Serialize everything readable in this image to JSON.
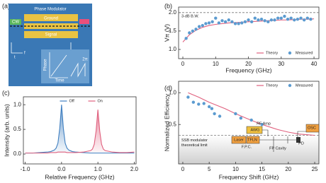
{
  "diagram": {
    "panel": "(a)",
    "title": "Phase Modulator",
    "input": "CW",
    "electrodes": [
      "Ground",
      "Signal"
    ],
    "inset_axes": [
      "Phase",
      "Time"
    ],
    "inset_label": "2π",
    "axis_letters": [
      "f",
      "t"
    ]
  },
  "chart_data": [
    {
      "type": "line",
      "panel": "(b)",
      "xlabel": "Frequency (GHz)",
      "ylabel": "Vπ (V)",
      "xlim": [
        -1.3,
        41.5
      ],
      "ylim": [
        0.75,
        2.15
      ],
      "xticks": [
        0,
        10,
        20,
        30,
        40
      ],
      "yticks": [
        {
          "value": 1.0,
          "label": "1.0"
        },
        1.5,
        {
          "value": 2.0,
          "label": "2.0"
        }
      ],
      "hline": {
        "value": 2.0,
        "label": "3-dB B.W."
      },
      "legend": "lower right",
      "series": [
        {
          "name": "Theory",
          "type": "line",
          "color": "#e0607e",
          "x": [
            0,
            2,
            4,
            6,
            8,
            10,
            12,
            14,
            16,
            18,
            20,
            22,
            24,
            26,
            28,
            30,
            32,
            34,
            36,
            38,
            40
          ],
          "values": [
            1.2,
            1.4,
            1.52,
            1.6,
            1.65,
            1.68,
            1.7,
            1.72,
            1.73,
            1.74,
            1.75,
            1.76,
            1.77,
            1.78,
            1.79,
            1.8,
            1.8,
            1.81,
            1.82,
            1.82,
            1.83
          ]
        },
        {
          "name": "Measured",
          "type": "scatter",
          "color": "#5b9bd0",
          "x": [
            1,
            2,
            3,
            4,
            5,
            6,
            7,
            8,
            9,
            10,
            11,
            12,
            13,
            14,
            15,
            16,
            17,
            18,
            19,
            20,
            21,
            22,
            23,
            24,
            25,
            26,
            27,
            28,
            29,
            30,
            31,
            32,
            33,
            34,
            35,
            36,
            37,
            38,
            39
          ],
          "values": [
            1.3,
            1.45,
            1.5,
            1.55,
            1.62,
            1.65,
            1.7,
            1.72,
            1.75,
            1.85,
            1.72,
            1.78,
            1.75,
            1.8,
            1.75,
            1.7,
            1.7,
            1.72,
            1.75,
            1.8,
            1.75,
            1.85,
            1.8,
            1.82,
            1.78,
            1.75,
            1.8,
            1.8,
            1.85,
            1.85,
            1.9,
            1.82,
            1.85,
            1.8,
            1.82,
            1.85,
            1.8,
            1.85,
            1.82
          ]
        }
      ]
    },
    {
      "type": "line",
      "panel": "(c)",
      "xlabel": "Relative Frequency (GHz)",
      "ylabel": "Intensity (arb. units)",
      "xlim": [
        -1.05,
        2.05
      ],
      "ylim": [
        -0.2,
        1.16
      ],
      "xticks": [
        {
          "value": -1,
          "label": "-1.0"
        },
        {
          "value": 0,
          "label": "0.0"
        },
        {
          "value": 1,
          "label": "1.0"
        },
        {
          "value": 2,
          "label": "2.0"
        }
      ],
      "yticks": [
        {
          "value": 0,
          "label": "0.0"
        },
        0.5,
        {
          "value": 1,
          "label": "1.0"
        }
      ],
      "legend": "upper center",
      "area": true,
      "series": [
        {
          "name": "Off",
          "type": "line",
          "color": "#3f7fc0",
          "x": [
            -1,
            -0.8,
            -0.6,
            -0.4,
            -0.3,
            -0.2,
            -0.15,
            -0.1,
            -0.05,
            0,
            0.05,
            0.1,
            0.15,
            0.2,
            0.3,
            0.4,
            0.6,
            0.8,
            0.85,
            0.9,
            0.95,
            1.0,
            1.05,
            1.1,
            1.15,
            1.2,
            1.4,
            1.6,
            1.8,
            2.0
          ],
          "values": [
            0.02,
            0.02,
            0.03,
            0.04,
            0.05,
            0.08,
            0.12,
            0.22,
            0.52,
            1.0,
            0.52,
            0.22,
            0.12,
            0.08,
            0.05,
            0.04,
            0.03,
            0.02,
            0.02,
            0.02,
            0.02,
            0.02,
            0.02,
            0.02,
            0.02,
            0.02,
            0.02,
            0.02,
            0.02,
            0.02
          ]
        },
        {
          "name": "On",
          "type": "line",
          "color": "#e0607e",
          "x": [
            -1,
            -0.8,
            -0.6,
            -0.4,
            -0.3,
            -0.2,
            -0.15,
            -0.1,
            -0.05,
            0,
            0.05,
            0.1,
            0.15,
            0.2,
            0.3,
            0.4,
            0.6,
            0.8,
            0.85,
            0.9,
            0.95,
            1.0,
            1.05,
            1.1,
            1.15,
            1.2,
            1.4,
            1.6,
            1.8,
            2.0
          ],
          "values": [
            0.02,
            0.02,
            0.02,
            0.02,
            0.03,
            0.03,
            0.03,
            0.04,
            0.04,
            0.04,
            0.04,
            0.04,
            0.03,
            0.03,
            0.03,
            0.03,
            0.04,
            0.07,
            0.1,
            0.2,
            0.47,
            0.9,
            0.47,
            0.2,
            0.1,
            0.07,
            0.04,
            0.03,
            0.03,
            0.04
          ]
        }
      ]
    },
    {
      "type": "line",
      "panel": "(d)",
      "xlabel": "Frequency Shift (GHz)",
      "ylabel": "Normalized Efficiency",
      "xlim": [
        -0.8,
        25.8
      ],
      "ylim": [
        -0.12,
        1.18
      ],
      "xticks": [
        0,
        5,
        10,
        15,
        20,
        25
      ],
      "yticks": [
        0.5,
        {
          "value": 1.0,
          "label": "1.0"
        }
      ],
      "hline": {
        "value": 0.33,
        "label": [
          "SSB modulator",
          "theoretical limit"
        ]
      },
      "legend": "upper right",
      "annotations": [
        "Laser",
        "AWG",
        "RF Amp",
        "TFLN",
        "F.P.C.",
        "FP Cavity",
        "PD",
        "OSC"
      ],
      "series": [
        {
          "name": "Theory",
          "type": "line",
          "color": "#e0607e",
          "x": [
            1,
            3,
            5,
            8,
            10,
            12,
            15,
            18,
            20,
            22,
            25
          ],
          "values": [
            1.0,
            0.93,
            0.85,
            0.75,
            0.67,
            0.6,
            0.5,
            0.42,
            0.38,
            0.35,
            0.33
          ]
        },
        {
          "name": "Measured",
          "type": "scatter",
          "color": "#5b9bd0",
          "x": [
            1,
            2,
            3,
            4,
            5,
            5.5,
            6,
            7,
            10,
            11,
            13,
            15
          ],
          "values": [
            0.93,
            0.85,
            0.82,
            0.83,
            0.78,
            0.75,
            0.67,
            0.63,
            0.67,
            0.6,
            0.57,
            0.5
          ]
        }
      ]
    }
  ]
}
